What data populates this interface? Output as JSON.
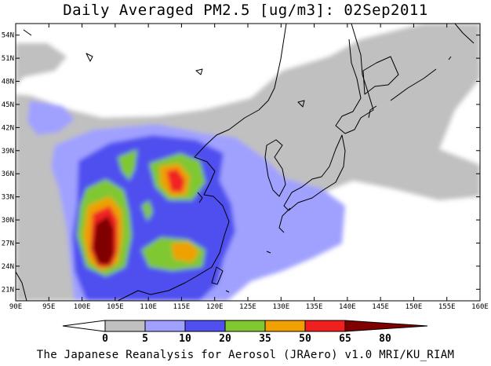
{
  "title": "Daily Averaged PM2.5 [ug/m3]: 02Sep2011",
  "footer": "The Japanese Reanalysis for Aerosol (JRAero) v1.0 MRI/KU_RIAM",
  "map": {
    "lon_range": [
      90,
      160
    ],
    "lat_range": [
      19.5,
      55.5
    ],
    "lon_ticks": [
      "90E",
      "95E",
      "100E",
      "105E",
      "110E",
      "115E",
      "120E",
      "125E",
      "130E",
      "135E",
      "140E",
      "145E",
      "150E",
      "155E",
      "160E"
    ],
    "lat_ticks": [
      "21N",
      "24N",
      "27N",
      "30N",
      "33N",
      "36N",
      "39N",
      "42N",
      "45N",
      "48N",
      "51N",
      "54N"
    ]
  },
  "colorbar": {
    "levels": [
      "0",
      "5",
      "10",
      "20",
      "35",
      "50",
      "65",
      "80"
    ],
    "colors": [
      "#ffffff",
      "#c0c0c0",
      "#a0a0ff",
      "#5050f0",
      "#80c830",
      "#f0a000",
      "#f02020",
      "#800000"
    ]
  }
}
